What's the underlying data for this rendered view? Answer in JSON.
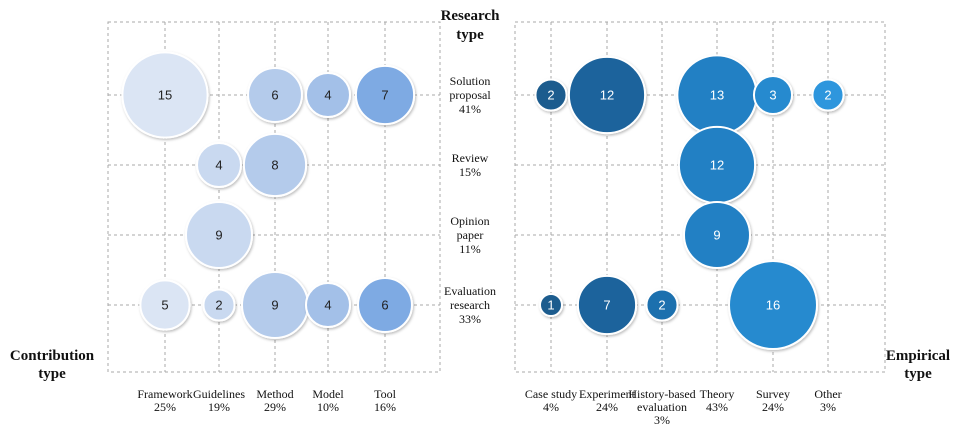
{
  "chart_data": {
    "type": "bubble",
    "title": [
      "Research",
      "type"
    ],
    "rows": [
      [
        "Solution",
        "proposal"
      ],
      [
        "Review"
      ],
      [
        "Opinion",
        "paper"
      ],
      [
        "Evaluation",
        "research"
      ]
    ],
    "row_shares": [
      41,
      15,
      11,
      33
    ],
    "row_share_labels": [
      "41%",
      "15%",
      "11%",
      "33%"
    ],
    "panels": [
      {
        "axis_title": [
          "Contribution",
          "type"
        ],
        "categories": [
          [
            "Framework"
          ],
          [
            "Guidelines"
          ],
          [
            "Method"
          ],
          [
            "Model"
          ],
          [
            "Tool"
          ]
        ],
        "shares": [
          25,
          19,
          29,
          10,
          16
        ],
        "share_labels": [
          "25%",
          "19%",
          "29%",
          "10%",
          "16%"
        ],
        "colors": [
          "#dbe5f4",
          "#c9d9f0",
          "#b4cbeb",
          "#a3c0e8",
          "#7eaae3"
        ],
        "text_color": "#222222",
        "values": [
          [
            15,
            null,
            6,
            4,
            7
          ],
          [
            null,
            4,
            8,
            null,
            null
          ],
          [
            null,
            9,
            null,
            null,
            null
          ],
          [
            5,
            2,
            9,
            4,
            6
          ]
        ]
      },
      {
        "axis_title": [
          "Empirical",
          "type"
        ],
        "categories": [
          [
            "Case study"
          ],
          [
            "Experiment"
          ],
          [
            "History-based",
            "evaluation"
          ],
          [
            "Theory"
          ],
          [
            "Survey"
          ],
          [
            "Other"
          ]
        ],
        "shares": [
          4,
          24,
          3,
          43,
          24,
          3
        ],
        "share_labels": [
          "4%",
          "24%",
          "3%",
          "43%",
          "24%",
          "3%"
        ],
        "colors": [
          "#1a5b8e",
          "#1b649c",
          "#1f70ae",
          "#2380c4",
          "#268acf",
          "#2d96dd"
        ],
        "text_color": "#ffffff",
        "values": [
          [
            2,
            12,
            null,
            13,
            3,
            2
          ],
          [
            null,
            null,
            null,
            12,
            null,
            null
          ],
          [
            null,
            null,
            null,
            9,
            null,
            null
          ],
          [
            1,
            7,
            2,
            null,
            16,
            null
          ]
        ]
      }
    ]
  }
}
